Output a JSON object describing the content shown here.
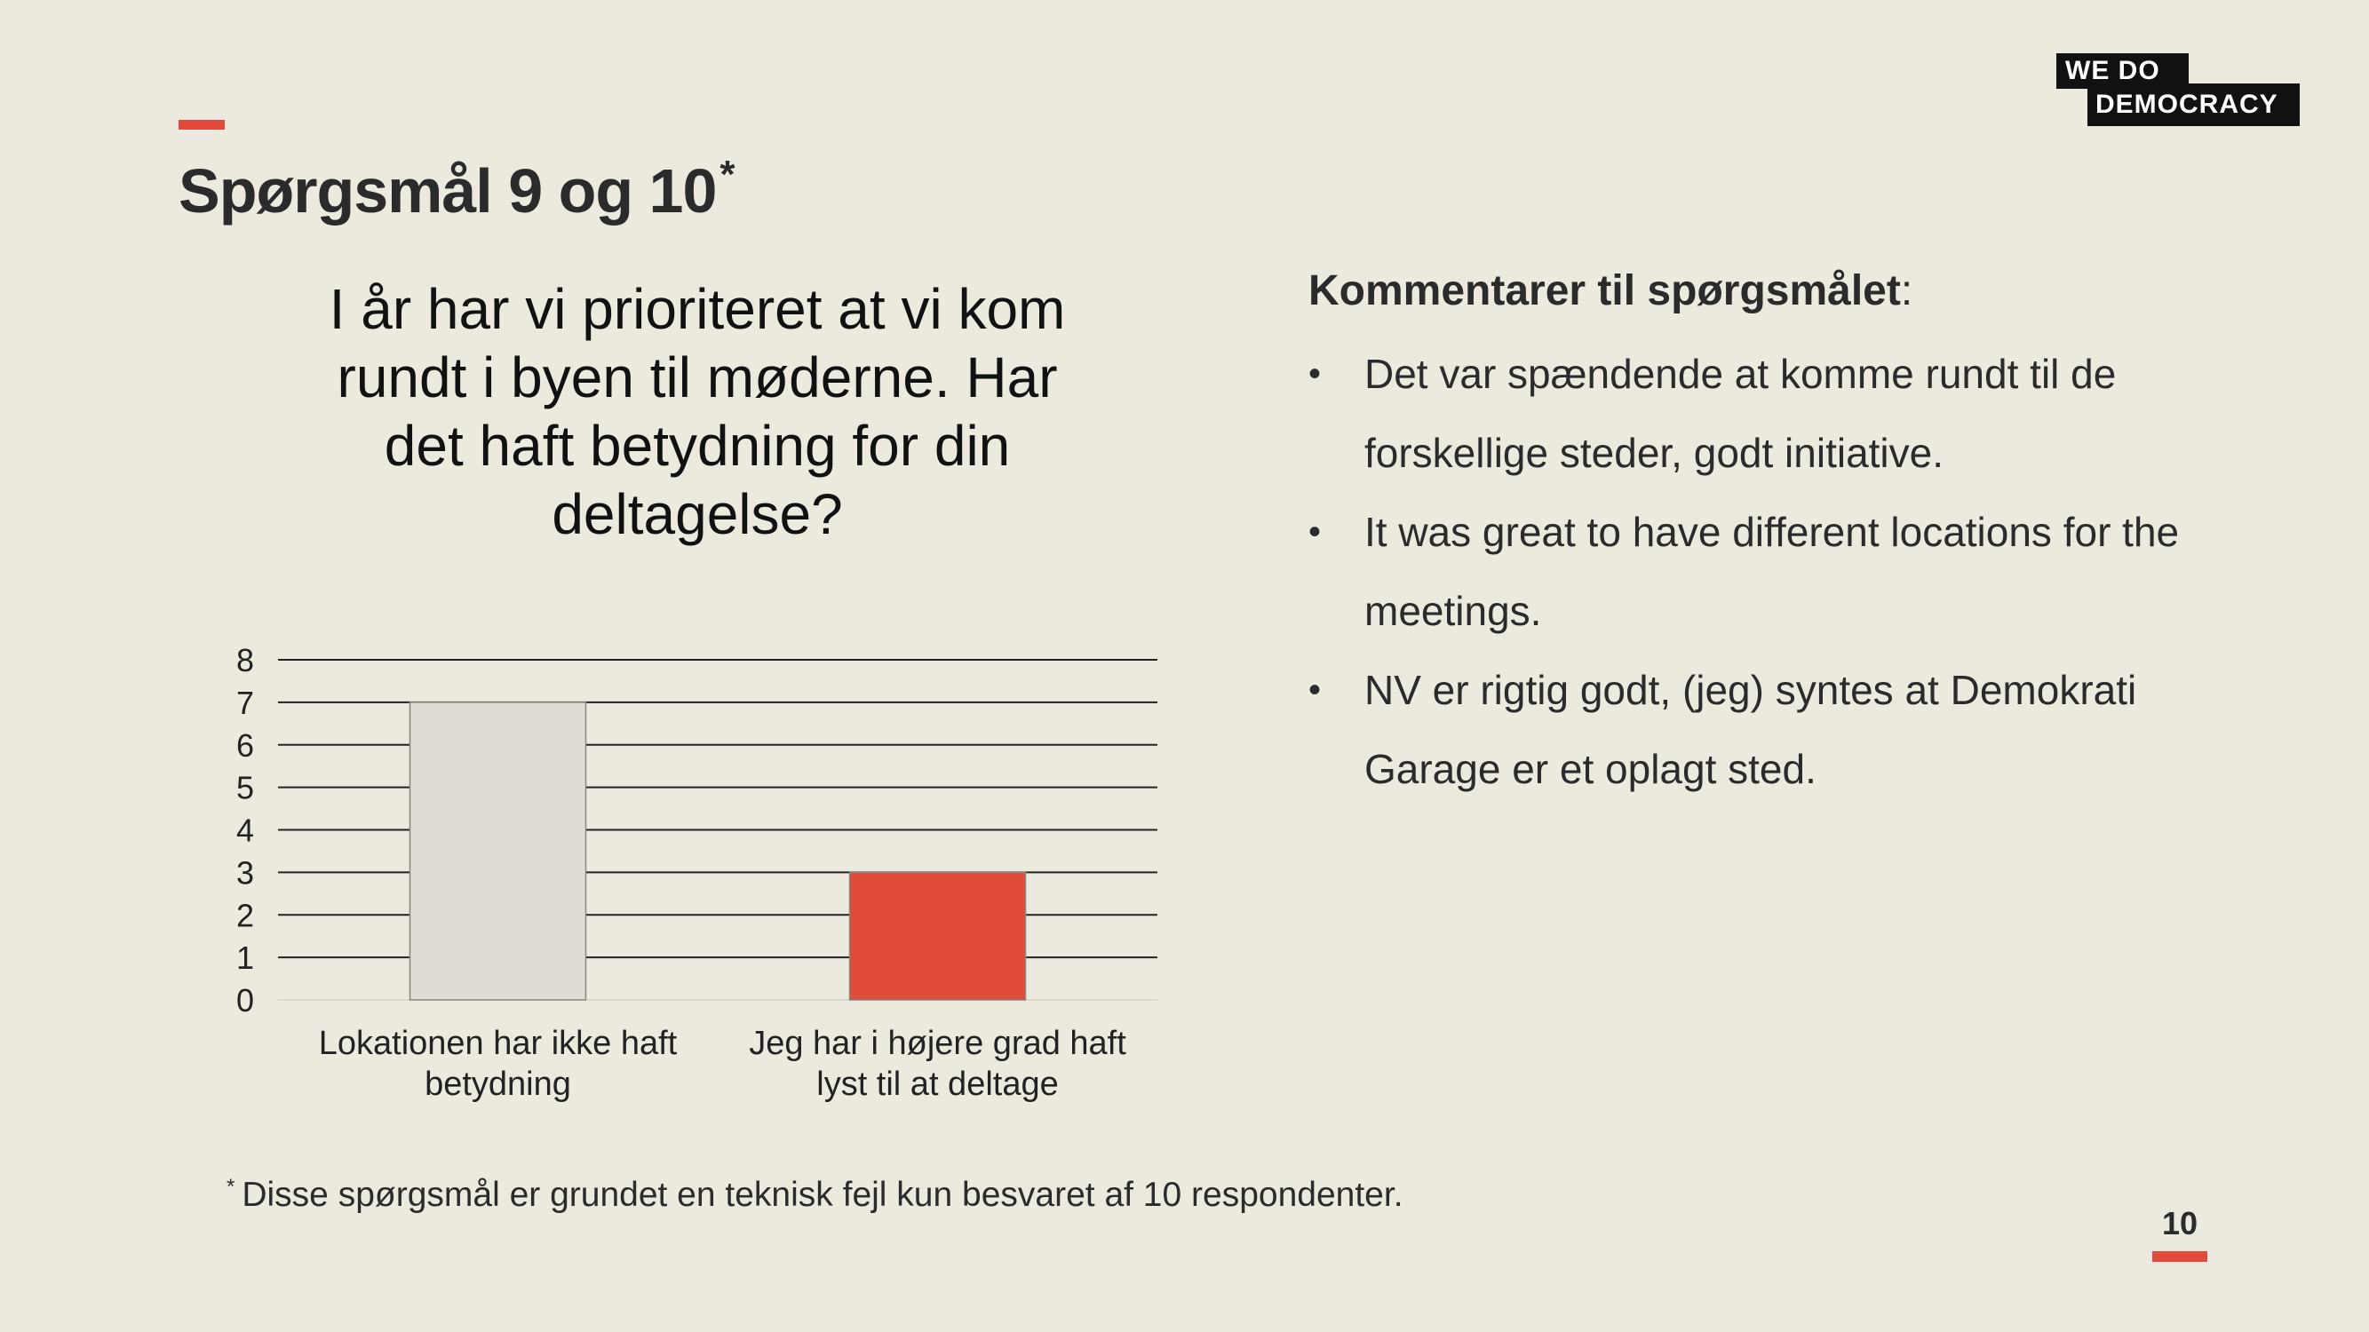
{
  "slide": {
    "title": "Spørgsmål 9 og 10",
    "title_mark": "*",
    "page_number": "10",
    "accent_color": "#E04B3B",
    "background_color": "#ECEADF"
  },
  "logo": {
    "line1": "WE DO",
    "line2": "DEMOCRACY"
  },
  "chart_data": {
    "type": "bar",
    "title": "I år har vi prioriteret at vi kom rundt i byen til møderne. Har det haft betydning for din deltagelse?",
    "categories": [
      "Lokationen har ikke haft betydning",
      "Jeg har i højere grad haft lyst til at deltage"
    ],
    "category_lines": [
      [
        "Lokationen har ikke haft",
        "betydning"
      ],
      [
        "Jeg har i højere grad haft",
        "lyst til at deltage"
      ]
    ],
    "values": [
      7,
      3
    ],
    "bar_colors": [
      "#E1DBD5",
      "#E04B3B"
    ],
    "ylim": [
      0,
      8
    ],
    "yticks": [
      0,
      1,
      2,
      3,
      4,
      5,
      6,
      7,
      8
    ],
    "grid": true,
    "xlabel": "",
    "ylabel": ""
  },
  "comments": {
    "heading": "Kommentarer til spørgsmålet",
    "heading_suffix": ":",
    "items": [
      "Det var spændende at komme rundt til de forskellige steder, godt initiative.",
      "It was great to have different locations for the meetings.",
      "NV er rigtig godt, (jeg) syntes at Demokrati Garage er et oplagt sted."
    ]
  },
  "footnote": {
    "mark": "*",
    "text": "Disse spørgsmål er grundet en teknisk fejl kun besvaret af 10 respondenter."
  }
}
